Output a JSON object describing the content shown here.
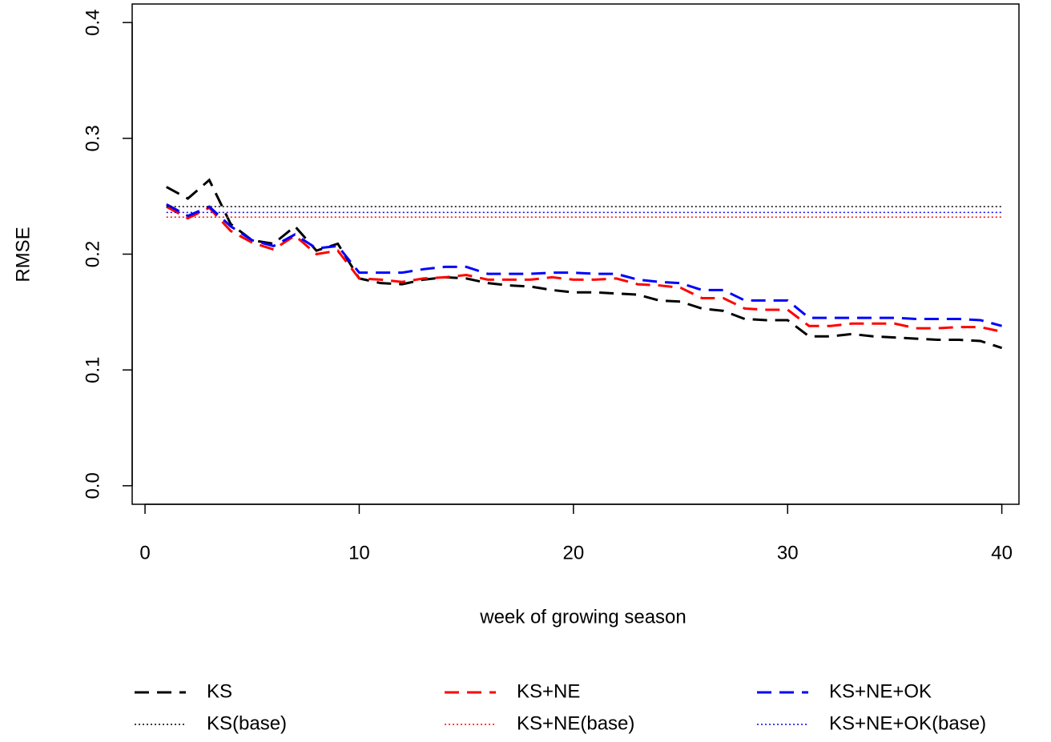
{
  "chart_data": {
    "type": "line",
    "x_label": "week of growing season",
    "y_label": "RMSE",
    "x": [
      1,
      2,
      3,
      4,
      5,
      6,
      7,
      8,
      9,
      10,
      11,
      12,
      13,
      14,
      15,
      16,
      17,
      18,
      19,
      20,
      21,
      22,
      23,
      24,
      25,
      26,
      27,
      28,
      29,
      30,
      31,
      32,
      33,
      34,
      35,
      36,
      37,
      38,
      39,
      40
    ],
    "xlim": [
      -0.6,
      40.8
    ],
    "ylim": [
      -0.016,
      0.416
    ],
    "xticks": [
      0,
      10,
      20,
      30,
      40
    ],
    "yticks": [
      {
        "value": 0,
        "label": "0.0"
      },
      0.1,
      0.2,
      0.3,
      0.4
    ],
    "series": [
      {
        "name": "KS",
        "color": "#000000",
        "dash": "dashed",
        "values": [
          0.258,
          0.248,
          0.264,
          0.226,
          0.212,
          0.209,
          0.224,
          0.203,
          0.209,
          0.179,
          0.175,
          0.174,
          0.178,
          0.18,
          0.179,
          0.175,
          0.173,
          0.172,
          0.169,
          0.167,
          0.167,
          0.166,
          0.165,
          0.16,
          0.159,
          0.153,
          0.151,
          0.144,
          0.143,
          0.143,
          0.129,
          0.129,
          0.131,
          0.129,
          0.128,
          0.127,
          0.126,
          0.126,
          0.125,
          0.119
        ]
      },
      {
        "name": "KS+NE",
        "color": "#ff0000",
        "dash": "dashed",
        "values": [
          0.241,
          0.231,
          0.24,
          0.22,
          0.21,
          0.204,
          0.216,
          0.2,
          0.203,
          0.179,
          0.178,
          0.176,
          0.179,
          0.18,
          0.182,
          0.178,
          0.178,
          0.178,
          0.18,
          0.178,
          0.178,
          0.179,
          0.174,
          0.173,
          0.171,
          0.162,
          0.162,
          0.153,
          0.152,
          0.152,
          0.138,
          0.138,
          0.14,
          0.14,
          0.14,
          0.136,
          0.136,
          0.137,
          0.137,
          0.133
        ]
      },
      {
        "name": "KS+NE+OK",
        "color": "#0000ff",
        "dash": "dashed",
        "values": [
          0.243,
          0.233,
          0.241,
          0.224,
          0.212,
          0.207,
          0.217,
          0.205,
          0.207,
          0.184,
          0.184,
          0.184,
          0.187,
          0.189,
          0.189,
          0.183,
          0.183,
          0.183,
          0.184,
          0.184,
          0.183,
          0.183,
          0.178,
          0.176,
          0.175,
          0.169,
          0.169,
          0.16,
          0.16,
          0.16,
          0.145,
          0.145,
          0.145,
          0.145,
          0.145,
          0.144,
          0.144,
          0.144,
          0.143,
          0.138
        ]
      },
      {
        "name": "KS(base)",
        "color": "#000000",
        "dash": "dotted",
        "x": [
          1,
          40
        ],
        "values": [
          0.241,
          0.241
        ]
      },
      {
        "name": "KS+NE(base)",
        "color": "#ff0000",
        "dash": "dotted",
        "x": [
          1,
          40
        ],
        "values": [
          0.232,
          0.232
        ]
      },
      {
        "name": "KS+NE+OK(base)",
        "color": "#0000ff",
        "dash": "dotted",
        "x": [
          1,
          40
        ],
        "values": [
          0.236,
          0.236
        ]
      }
    ]
  }
}
